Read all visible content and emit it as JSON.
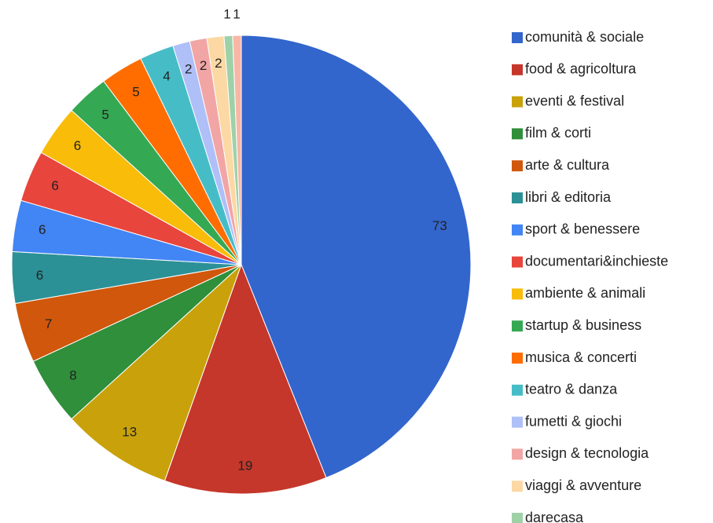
{
  "chart_data": {
    "type": "pie",
    "categories": [
      "comunità & sociale",
      "food & agricoltura",
      "eventi & festival",
      "film & corti",
      "arte & cultura",
      "libri & editoria",
      "sport & benessere",
      "documentari&inchieste",
      "ambiente & animali",
      "startup &  business",
      "musica & concerti",
      "teatro & danza",
      "fumetti & giochi",
      "design & tecnologia",
      "viaggi & avventure",
      "darecasa",
      null
    ],
    "values": [
      73,
      19,
      13,
      8,
      7,
      6,
      6,
      6,
      6,
      5,
      5,
      4,
      2,
      2,
      2,
      1,
      1
    ],
    "colors": [
      "#3366cc",
      "#c5372a",
      "#c9a10a",
      "#2f8f3a",
      "#d0570c",
      "#2c9196",
      "#4285f4",
      "#e8453c",
      "#f8bc09",
      "#35a853",
      "#ff6d00",
      "#46bdc6",
      "#afbff8",
      "#f2a5a5",
      "#fcd8a4",
      "#9fd1a8",
      "#f8b7a6"
    ],
    "legend": "right"
  }
}
